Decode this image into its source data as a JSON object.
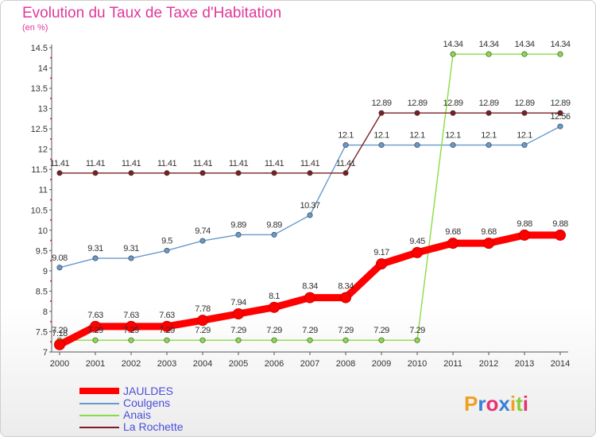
{
  "title": "Evolution du Taux de Taxe d'Habitation",
  "unit": "(en %)",
  "logo": "Proxiti",
  "chart_data": {
    "type": "line",
    "x": [
      "2000",
      "2001",
      "2002",
      "2003",
      "2004",
      "2005",
      "2006",
      "2007",
      "2008",
      "2009",
      "2010",
      "2011",
      "2012",
      "2013",
      "2014"
    ],
    "ylim": [
      7,
      14.5
    ],
    "yticks": [
      "7",
      "7.5",
      "8",
      "8.5",
      "9",
      "9.5",
      "10",
      "10.5",
      "11",
      "11.5",
      "12",
      "12.5",
      "13",
      "13.5",
      "14",
      "14.5"
    ],
    "grid": false,
    "legend": "bottom-left",
    "series": [
      {
        "name": "JAULDES",
        "color": "#ff0000",
        "values": [
          7.18,
          7.63,
          7.63,
          7.63,
          7.78,
          7.94,
          8.1,
          8.34,
          8.34,
          9.17,
          9.45,
          9.68,
          9.68,
          9.88,
          9.88
        ],
        "labels": [
          "7.18",
          "7.63",
          "7.63",
          "7.63",
          "7.78",
          "7.94",
          "8.1",
          "8.34",
          "8.34",
          "9.17",
          "9.45",
          "9.68",
          "9.68",
          "9.88",
          "9.88"
        ]
      },
      {
        "name": "Coulgens",
        "color": "#6699cc",
        "values": [
          9.08,
          9.31,
          9.31,
          9.5,
          9.74,
          9.89,
          9.89,
          10.37,
          12.1,
          12.1,
          12.1,
          12.1,
          12.1,
          12.1,
          12.56
        ],
        "labels": [
          "9.08",
          "9.31",
          "9.31",
          "9.5",
          "9.74",
          "9.89",
          "9.89",
          "10.37",
          "12.1",
          "12.1",
          "12.1",
          "12.1",
          "12.1",
          "12.1",
          "12.56"
        ]
      },
      {
        "name": "Anais",
        "color": "#88dd44",
        "values": [
          7.29,
          7.29,
          7.29,
          7.29,
          7.29,
          7.29,
          7.29,
          7.29,
          7.29,
          7.29,
          7.29,
          14.34,
          14.34,
          14.34,
          14.34
        ],
        "labels": [
          "7.29",
          "7.29",
          "7.29",
          "7.29",
          "7.29",
          "7.29",
          "7.29",
          "7.29",
          "7.29",
          "7.29",
          "7.29",
          "14.34",
          "14.34",
          "14.34",
          "14.34"
        ]
      },
      {
        "name": "La Rochette",
        "color": "#7a1f22",
        "values": [
          11.41,
          11.41,
          11.41,
          11.41,
          11.41,
          11.41,
          11.41,
          11.41,
          11.41,
          12.89,
          12.89,
          12.89,
          12.89,
          12.89,
          12.89
        ],
        "labels": [
          "11.41",
          "11.41",
          "11.41",
          "11.41",
          "11.41",
          "11.41",
          "11.41",
          "11.41",
          "11.41",
          "12.89",
          "12.89",
          "12.89",
          "12.89",
          "12.89",
          "12.89"
        ]
      }
    ]
  }
}
